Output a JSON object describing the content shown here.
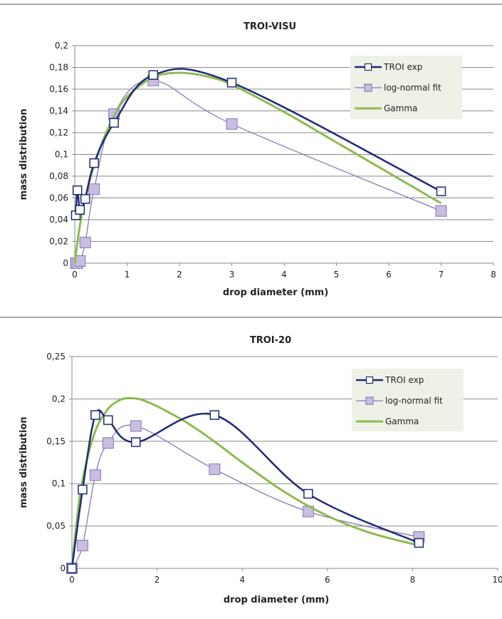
{
  "chart_data": [
    {
      "type": "line",
      "title": "TROI-VISU",
      "xlabel": "drop diameter (mm)",
      "ylabel": "mass distribution",
      "xlim": [
        0,
        8
      ],
      "ylim": [
        0,
        0.2
      ],
      "xticks": [
        "0",
        "1",
        "2",
        "3",
        "4",
        "5",
        "6",
        "7",
        "8"
      ],
      "yticks": [
        "0",
        "0,02",
        "0,04",
        "0,06",
        "0,08",
        "0,1",
        "0,12",
        "0,14",
        "0,16",
        "0,18",
        "0,2"
      ],
      "grid": "horizontal",
      "legend_position": "top-right",
      "series": [
        {
          "name": "TROI exp",
          "color": "#1f2a78",
          "marker": "square-open",
          "x": [
            0.02,
            0.05,
            0.1,
            0.2,
            0.37,
            0.75,
            1.5,
            3.0,
            7.0
          ],
          "y": [
            0.044,
            0.067,
            0.049,
            0.059,
            0.092,
            0.129,
            0.173,
            0.166,
            0.066
          ]
        },
        {
          "name": "log-normal fit",
          "color": "#8877bb",
          "marker": "square-filled",
          "marker_fill": "#c9bde0",
          "x": [
            0.02,
            0.05,
            0.1,
            0.2,
            0.37,
            0.75,
            1.5,
            3.0,
            7.0
          ],
          "y": [
            0.0,
            0.0,
            0.002,
            0.019,
            0.068,
            0.137,
            0.168,
            0.128,
            0.048
          ]
        },
        {
          "name": "Gamma",
          "color": "#8dbb4f",
          "marker": "none",
          "x": [
            0,
            0.1,
            0.25,
            0.5,
            0.75,
            1.0,
            1.5,
            2.0,
            2.5,
            3.0,
            4.0,
            5.0,
            6.0,
            7.0
          ],
          "y": [
            0.0,
            0.035,
            0.07,
            0.108,
            0.135,
            0.153,
            0.171,
            0.175,
            0.172,
            0.164,
            0.139,
            0.111,
            0.083,
            0.055
          ]
        }
      ]
    },
    {
      "type": "line",
      "title": "TROI-20",
      "xlabel": "drop diameter (mm)",
      "ylabel": "mass distribution",
      "xlim": [
        0,
        10
      ],
      "ylim": [
        0,
        0.25
      ],
      "xticks": [
        "0",
        "2",
        "4",
        "6",
        "8",
        "10"
      ],
      "yticks": [
        "0",
        "0,05",
        "0,1",
        "0,15",
        "0,2",
        "0,25"
      ],
      "grid": "horizontal",
      "legend_position": "top-right",
      "series": [
        {
          "name": "TROI exp",
          "color": "#1f2a78",
          "marker": "square-open",
          "x": [
            0.0,
            0.25,
            0.55,
            0.85,
            1.5,
            3.35,
            5.55,
            8.15
          ],
          "y": [
            0.0,
            0.093,
            0.181,
            0.175,
            0.149,
            0.181,
            0.088,
            0.03
          ]
        },
        {
          "name": "log-normal fit",
          "color": "#8877bb",
          "marker": "square-filled",
          "marker_fill": "#c9bde0",
          "x": [
            0.0,
            0.25,
            0.55,
            0.85,
            1.5,
            3.35,
            5.55,
            8.15
          ],
          "y": [
            0.0,
            0.027,
            0.11,
            0.148,
            0.168,
            0.117,
            0.067,
            0.037
          ]
        },
        {
          "name": "Gamma",
          "color": "#8dbb4f",
          "marker": "none",
          "x": [
            0,
            0.2,
            0.5,
            0.8,
            1.1,
            1.4,
            1.8,
            2.5,
            3.0,
            3.5,
            4.0,
            5.0,
            6.0,
            7.0,
            8.15
          ],
          "y": [
            0.0,
            0.09,
            0.155,
            0.185,
            0.198,
            0.201,
            0.196,
            0.178,
            0.162,
            0.144,
            0.125,
            0.09,
            0.062,
            0.042,
            0.027
          ]
        }
      ]
    }
  ]
}
